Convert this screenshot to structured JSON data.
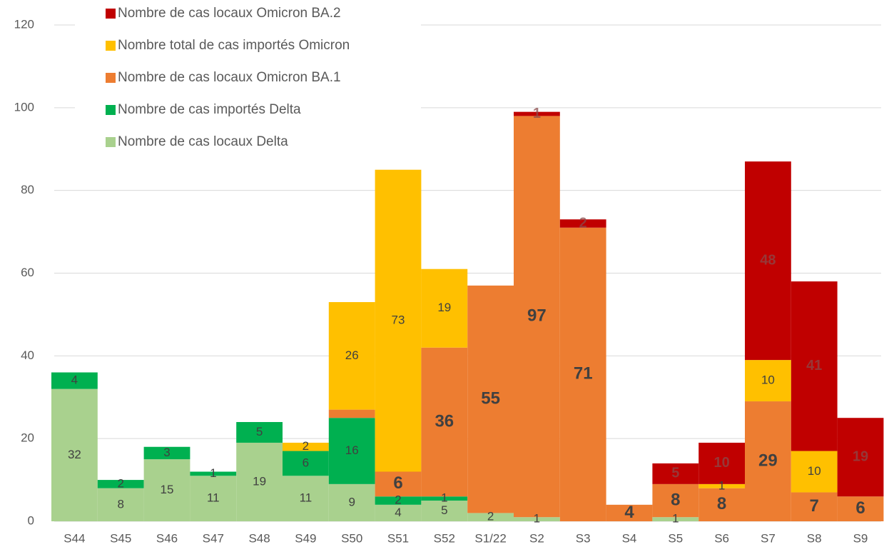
{
  "chart_data": {
    "type": "stacked-bar",
    "categories": [
      "S44",
      "S45",
      "S46",
      "S47",
      "S48",
      "S49",
      "S50",
      "S51",
      "S52",
      "S1/22",
      "S2",
      "S3",
      "S4",
      "S5",
      "S6",
      "S7",
      "S8",
      "S9"
    ],
    "series": [
      {
        "name": "Nombre de cas locaux Delta",
        "color": "#a9d18e",
        "values": [
          32,
          8,
          15,
          11,
          19,
          11,
          9,
          4,
          5,
          2,
          1,
          null,
          null,
          1,
          null,
          null,
          null,
          null
        ],
        "value_labels": [
          "32",
          "8",
          "15",
          "11",
          "19",
          "11",
          "9",
          "4",
          "5",
          "2",
          "1",
          null,
          null,
          "1",
          null,
          null,
          null,
          null
        ]
      },
      {
        "name": "Nombre de cas importés Delta",
        "color": "#00b050",
        "values": [
          4,
          2,
          3,
          1,
          5,
          6,
          16,
          2,
          1,
          null,
          null,
          null,
          null,
          null,
          null,
          null,
          null,
          null
        ],
        "value_labels": [
          "4",
          "2",
          "3",
          "1",
          "5",
          "6",
          "16",
          "2",
          "1",
          null,
          null,
          null,
          null,
          null,
          null,
          null,
          null,
          null
        ]
      },
      {
        "name": "Nombre de cas locaux Omicron BA.1",
        "color": "#ed7d31",
        "values": [
          null,
          null,
          null,
          null,
          null,
          null,
          2,
          6,
          36,
          55,
          97,
          71,
          4,
          8,
          8,
          29,
          7,
          6
        ],
        "value_labels": [
          null,
          null,
          null,
          null,
          null,
          null,
          null,
          "6",
          "36",
          "55",
          "97",
          "71",
          "4",
          "8",
          "8",
          "29",
          "7",
          "6"
        ]
      },
      {
        "name": "Nombre total de cas importés Omicron",
        "color": "#ffc000",
        "values": [
          null,
          null,
          null,
          null,
          null,
          2,
          26,
          73,
          19,
          null,
          null,
          null,
          null,
          null,
          1,
          10,
          10,
          null
        ],
        "value_labels": [
          null,
          null,
          null,
          null,
          null,
          "2",
          "26",
          "73",
          "19",
          null,
          null,
          null,
          null,
          null,
          "1",
          "10",
          "10",
          null
        ]
      },
      {
        "name": "Nombre de cas locaux Omicron BA.2",
        "color": "#c00000",
        "values": [
          null,
          null,
          null,
          null,
          null,
          null,
          null,
          null,
          null,
          null,
          1,
          2,
          null,
          5,
          10,
          48,
          41,
          19
        ],
        "value_labels": [
          null,
          null,
          null,
          null,
          null,
          null,
          null,
          null,
          null,
          null,
          "1",
          "2",
          null,
          "5",
          "10",
          "48",
          "41",
          "19"
        ]
      }
    ],
    "ylim": [
      0,
      120
    ],
    "yticks": [
      0,
      20,
      40,
      60,
      80,
      100,
      120
    ],
    "grid": true,
    "legend": "top-left"
  }
}
